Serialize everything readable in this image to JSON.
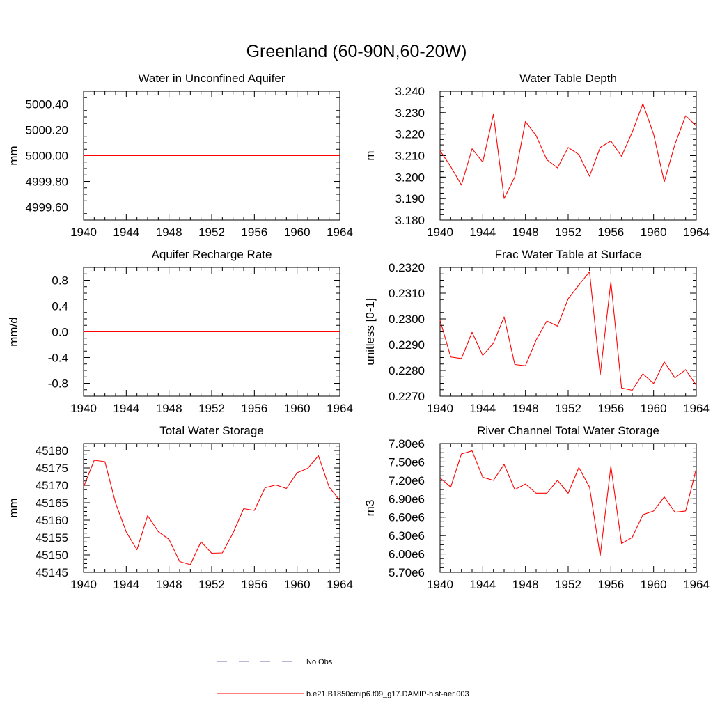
{
  "page": {
    "title": "Greenland (60-90N,60-20W)"
  },
  "colors": {
    "model_line": "#ff0000",
    "obs_line": "#6f6fb3",
    "axis": "#000000"
  },
  "legend": {
    "obs_label": "No Obs",
    "model_label": "b.e21.B1850cmip6.f09_g17.DAMIP-hist-aer.003"
  },
  "chart_data": [
    {
      "type": "line",
      "title": "Water in Unconfined Aquifer",
      "xlabel": "",
      "ylabel": "mm",
      "xlim": [
        1940,
        1964
      ],
      "ylim": [
        4999.5,
        5000.5
      ],
      "xticks": [
        1940,
        1944,
        1948,
        1952,
        1956,
        1960,
        1964
      ],
      "xtick_labels": [
        "1940",
        "1944",
        "1948",
        "1952",
        "1956",
        "1960",
        "1964"
      ],
      "yticks": [
        4999.6,
        4999.8,
        5000.0,
        5000.2,
        5000.4
      ],
      "ytick_labels": [
        "4999.60",
        "4999.80",
        "5000.00",
        "5000.20",
        "5000.40"
      ],
      "series": [
        {
          "x": [
            1940,
            1941,
            1942,
            1943,
            1944,
            1945,
            1946,
            1947,
            1948,
            1949,
            1950,
            1951,
            1952,
            1953,
            1954,
            1955,
            1956,
            1957,
            1958,
            1959,
            1960,
            1961,
            1962,
            1963,
            1964
          ],
          "values": [
            5000,
            5000,
            5000,
            5000,
            5000,
            5000,
            5000,
            5000,
            5000,
            5000,
            5000,
            5000,
            5000,
            5000,
            5000,
            5000,
            5000,
            5000,
            5000,
            5000,
            5000,
            5000,
            5000,
            5000,
            5000
          ]
        }
      ]
    },
    {
      "type": "line",
      "title": "Water Table Depth",
      "xlabel": "",
      "ylabel": "m",
      "xlim": [
        1940,
        1964
      ],
      "ylim": [
        3.18,
        3.24
      ],
      "xticks": [
        1940,
        1944,
        1948,
        1952,
        1956,
        1960,
        1964
      ],
      "xtick_labels": [
        "1940",
        "1944",
        "1948",
        "1952",
        "1956",
        "1960",
        "1964"
      ],
      "yticks": [
        3.18,
        3.19,
        3.2,
        3.21,
        3.22,
        3.23,
        3.24
      ],
      "ytick_labels": [
        "3.180",
        "3.190",
        "3.200",
        "3.210",
        "3.220",
        "3.230",
        "3.240"
      ],
      "series": [
        {
          "x": [
            1940,
            1941,
            1942,
            1943,
            1944,
            1945,
            1946,
            1947,
            1948,
            1949,
            1950,
            1951,
            1952,
            1953,
            1954,
            1955,
            1956,
            1957,
            1958,
            1959,
            1960,
            1961,
            1962,
            1963,
            1964
          ],
          "values": [
            3.2123,
            3.2049,
            3.1963,
            3.2132,
            3.207,
            3.2292,
            3.19,
            3.2001,
            3.2259,
            3.2193,
            3.2081,
            3.2043,
            3.2138,
            3.2105,
            3.2004,
            3.2138,
            3.2168,
            3.2097,
            3.2209,
            3.2342,
            3.22,
            3.1978,
            3.2153,
            3.2286,
            3.2238
          ]
        }
      ]
    },
    {
      "type": "line",
      "title": "Aquifer Recharge Rate",
      "xlabel": "",
      "ylabel": "mm/d",
      "xlim": [
        1940,
        1964
      ],
      "ylim": [
        -1.0,
        1.0
      ],
      "xticks": [
        1940,
        1944,
        1948,
        1952,
        1956,
        1960,
        1964
      ],
      "xtick_labels": [
        "1940",
        "1944",
        "1948",
        "1952",
        "1956",
        "1960",
        "1964"
      ],
      "yticks": [
        -0.8,
        -0.4,
        0.0,
        0.4,
        0.8
      ],
      "ytick_labels": [
        "-0.8",
        "-0.4",
        "0.0",
        "0.4",
        "0.8"
      ],
      "series": [
        {
          "x": [
            1940,
            1941,
            1942,
            1943,
            1944,
            1945,
            1946,
            1947,
            1948,
            1949,
            1950,
            1951,
            1952,
            1953,
            1954,
            1955,
            1956,
            1957,
            1958,
            1959,
            1960,
            1961,
            1962,
            1963,
            1964
          ],
          "values": [
            0,
            0,
            0,
            0,
            0,
            0,
            0,
            0,
            0,
            0,
            0,
            0,
            0,
            0,
            0,
            0,
            0,
            0,
            0,
            0,
            0,
            0,
            0,
            0,
            0
          ]
        }
      ]
    },
    {
      "type": "line",
      "title": "Frac Water Table at Surface",
      "xlabel": "",
      "ylabel": "unitless [0-1]",
      "xlim": [
        1940,
        1964
      ],
      "ylim": [
        0.227,
        0.232
      ],
      "xticks": [
        1940,
        1944,
        1948,
        1952,
        1956,
        1960,
        1964
      ],
      "xtick_labels": [
        "1940",
        "1944",
        "1948",
        "1952",
        "1956",
        "1960",
        "1964"
      ],
      "yticks": [
        0.227,
        0.228,
        0.229,
        0.23,
        0.231,
        0.232
      ],
      "ytick_labels": [
        "0.2270",
        "0.2280",
        "0.2290",
        "0.2300",
        "0.2310",
        "0.2320"
      ],
      "series": [
        {
          "x": [
            1940,
            1941,
            1942,
            1943,
            1944,
            1945,
            1946,
            1947,
            1948,
            1949,
            1950,
            1951,
            1952,
            1953,
            1954,
            1955,
            1956,
            1957,
            1958,
            1959,
            1960,
            1961,
            1962,
            1963,
            1964
          ],
          "values": [
            0.22995,
            0.22852,
            0.22846,
            0.22948,
            0.22858,
            0.22906,
            0.23008,
            0.22823,
            0.22818,
            0.22918,
            0.22992,
            0.22972,
            0.23078,
            0.23132,
            0.23183,
            0.22783,
            0.23144,
            0.22732,
            0.22723,
            0.22787,
            0.22749,
            0.22833,
            0.22771,
            0.22803,
            0.22742
          ]
        }
      ]
    },
    {
      "type": "line",
      "title": "Total Water Storage",
      "xlabel": "",
      "ylabel": "mm",
      "xlim": [
        1940,
        1964
      ],
      "ylim": [
        45145,
        45182
      ],
      "xticks": [
        1940,
        1944,
        1948,
        1952,
        1956,
        1960,
        1964
      ],
      "xtick_labels": [
        "1940",
        "1944",
        "1948",
        "1952",
        "1956",
        "1960",
        "1964"
      ],
      "yticks": [
        45145,
        45150,
        45155,
        45160,
        45165,
        45170,
        45175,
        45180
      ],
      "ytick_labels": [
        "45145",
        "45150",
        "45155",
        "45160",
        "45165",
        "45170",
        "45175",
        "45180"
      ],
      "series": [
        {
          "x": [
            1940,
            1941,
            1942,
            1943,
            1944,
            1945,
            1946,
            1947,
            1948,
            1949,
            1950,
            1951,
            1952,
            1953,
            1954,
            1955,
            1956,
            1957,
            1958,
            1959,
            1960,
            1961,
            1962,
            1963,
            1964
          ],
          "values": [
            45169.5,
            45177.2,
            45176.8,
            45164.9,
            45156.6,
            45151.5,
            45161.3,
            45156.7,
            45154.5,
            45148.1,
            45147.2,
            45153.8,
            45150.5,
            45150.6,
            45156.3,
            45163.3,
            45162.8,
            45169.3,
            45170.1,
            45169.1,
            45173.6,
            45174.9,
            45178.5,
            45169.5,
            45165.7
          ]
        }
      ]
    },
    {
      "type": "line",
      "title": "River Channel Total Water Storage",
      "xlabel": "",
      "ylabel": "m3",
      "xlim": [
        1940,
        1964
      ],
      "ylim": [
        5700000,
        7800000
      ],
      "xticks": [
        1940,
        1944,
        1948,
        1952,
        1956,
        1960,
        1964
      ],
      "xtick_labels": [
        "1940",
        "1944",
        "1948",
        "1952",
        "1956",
        "1960",
        "1964"
      ],
      "yticks": [
        5700000,
        6000000,
        6300000,
        6600000,
        6900000,
        7200000,
        7500000,
        7800000
      ],
      "ytick_labels": [
        "5.70e6",
        "6.00e6",
        "6.30e6",
        "6.60e6",
        "6.90e6",
        "7.20e6",
        "7.50e6",
        "7.80e6"
      ],
      "series": [
        {
          "x": [
            1940,
            1941,
            1942,
            1943,
            1944,
            1945,
            1946,
            1947,
            1948,
            1949,
            1950,
            1951,
            1952,
            1953,
            1954,
            1955,
            1956,
            1957,
            1958,
            1959,
            1960,
            1961,
            1962,
            1963,
            1964
          ],
          "values": [
            7240000,
            7090000,
            7630000,
            7680000,
            7250000,
            7200000,
            7460000,
            7050000,
            7140000,
            6990000,
            6990000,
            7200000,
            6990000,
            7410000,
            7090000,
            5970000,
            7430000,
            6170000,
            6270000,
            6640000,
            6700000,
            6930000,
            6680000,
            6700000,
            7390000
          ]
        }
      ]
    }
  ]
}
